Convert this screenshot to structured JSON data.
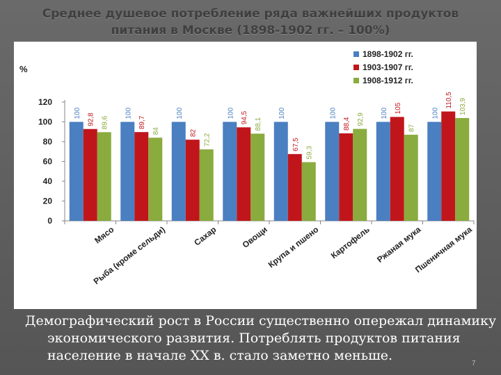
{
  "slide": {
    "title": "Среднее душевое потребление ряда важнейших продуктов питания в Москве (1898-1902 гг. – 100%)",
    "body_text": "Демографический рост в России существенно опережал динамику экономического развития. Потреблять продуктов питания население в начале XX в. стало заметно меньше.",
    "page_number": "7"
  },
  "chart_data": {
    "type": "bar",
    "ylabel": "%",
    "ylim": [
      0,
      120
    ],
    "yticks": [
      "0",
      "20",
      "40",
      "60",
      "80",
      "100",
      "120"
    ],
    "grid": false,
    "legend_position": "top-right",
    "categories": [
      "Мясо",
      "Рыба (кроме сельди)",
      "Сахар",
      "Овощи",
      "Крупа и пшено",
      "Картофель",
      "Ржаная мука",
      "Пшеничная мука"
    ],
    "series": [
      {
        "name": "1898-1902 гг.",
        "color": "#4a7fc1",
        "values": [
          100,
          100,
          100,
          100,
          100,
          100,
          100,
          100
        ],
        "labels": [
          "100",
          "100",
          "100",
          "100",
          "100",
          "100",
          "100",
          "100"
        ]
      },
      {
        "name": "1903-1907 гг.",
        "color": "#c0161b",
        "values": [
          92.8,
          89.7,
          82,
          94.5,
          67.5,
          88.4,
          105,
          110.5
        ],
        "labels": [
          "92,8",
          "89,7",
          "82",
          "94,5",
          "67,5",
          "88,4",
          "105",
          "110,5"
        ]
      },
      {
        "name": "1908-1912 гг.",
        "color": "#8aab3e",
        "values": [
          89.6,
          84,
          72.2,
          88.1,
          59.3,
          92.9,
          87,
          103.9
        ],
        "labels": [
          "89,6",
          "84",
          "72,2",
          "88,1",
          "59,3",
          "92,9",
          "87",
          "103,9"
        ]
      }
    ]
  }
}
